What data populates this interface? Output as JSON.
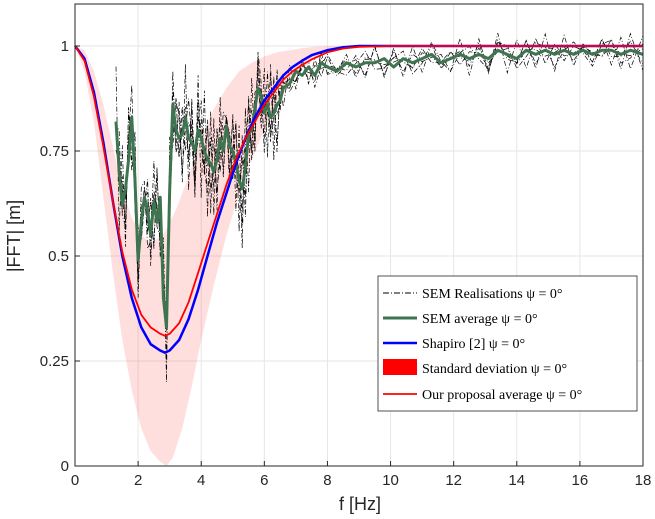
{
  "chart_data": {
    "type": "line",
    "xlabel": "f [Hz]",
    "ylabel": "|FFT| [m]",
    "xlim": [
      0,
      18
    ],
    "ylim": [
      0,
      1.1
    ],
    "xticks": [
      0,
      2,
      4,
      6,
      8,
      10,
      12,
      14,
      16,
      18
    ],
    "xtick_labels": [
      "0",
      "2",
      "4",
      "6",
      "8",
      "10",
      "12",
      "14",
      "16",
      "18"
    ],
    "yticks": [
      0,
      0.25,
      0.5,
      0.75,
      1
    ],
    "ytick_labels": [
      "0",
      "0.25",
      "0.5",
      "0.75",
      "1"
    ],
    "grid": true,
    "legend_position": "lower-right",
    "legend": [
      {
        "label": "SEM Realisations ψ = 0°",
        "style": "dashdot",
        "color": "#000000"
      },
      {
        "label": "SEM average ψ = 0°",
        "style": "line",
        "color": "#3f7450"
      },
      {
        "label": "Shapiro [2] ψ = 0°",
        "style": "line",
        "color": "#0000ff"
      },
      {
        "label": "Standard deviation ψ = 0°",
        "style": "patch",
        "color": "#ff0000"
      },
      {
        "label": "Our proposal average ψ = 0°",
        "style": "line",
        "color": "#ff0000"
      }
    ],
    "series": [
      {
        "name": "Shapiro [2] ψ = 0°",
        "color": "#0000ff",
        "x": [
          0,
          0.3,
          0.6,
          0.9,
          1.2,
          1.5,
          1.8,
          2.1,
          2.4,
          2.7,
          2.85,
          3.0,
          3.3,
          3.6,
          3.9,
          4.2,
          4.5,
          4.8,
          5.1,
          5.4,
          5.7,
          6.0,
          6.3,
          6.6,
          6.9,
          7.2,
          7.5,
          8.0,
          8.5,
          9.0,
          10,
          12,
          14,
          16,
          18
        ],
        "y": [
          1.0,
          0.97,
          0.89,
          0.77,
          0.63,
          0.5,
          0.4,
          0.33,
          0.29,
          0.275,
          0.27,
          0.275,
          0.3,
          0.35,
          0.42,
          0.5,
          0.58,
          0.65,
          0.72,
          0.78,
          0.83,
          0.87,
          0.9,
          0.93,
          0.95,
          0.965,
          0.978,
          0.99,
          0.997,
          1.0,
          1.0,
          1.0,
          1.0,
          1.0,
          1.0
        ]
      },
      {
        "name": "Our proposal average ψ = 0°",
        "color": "#ff0000",
        "x": [
          0,
          0.3,
          0.6,
          0.9,
          1.2,
          1.5,
          1.8,
          2.1,
          2.4,
          2.7,
          2.85,
          3.0,
          3.3,
          3.6,
          3.9,
          4.2,
          4.5,
          4.8,
          5.1,
          5.4,
          5.7,
          6.0,
          6.3,
          6.6,
          6.9,
          7.2,
          7.5,
          8.0,
          8.5,
          9.0,
          10,
          12,
          14,
          16,
          18
        ],
        "y": [
          1.0,
          0.965,
          0.88,
          0.76,
          0.63,
          0.51,
          0.42,
          0.36,
          0.33,
          0.315,
          0.31,
          0.315,
          0.34,
          0.39,
          0.46,
          0.53,
          0.6,
          0.67,
          0.73,
          0.78,
          0.82,
          0.86,
          0.89,
          0.92,
          0.94,
          0.955,
          0.968,
          0.985,
          0.994,
          0.998,
          1.0,
          1.0,
          1.0,
          1.0,
          1.0
        ]
      },
      {
        "name": "Standard deviation ψ = 0° (upper)",
        "color": "#ff0000",
        "x": [
          0,
          0.3,
          0.6,
          0.9,
          1.2,
          1.5,
          1.8,
          2.1,
          2.4,
          2.8,
          3.2,
          3.6,
          4.0,
          4.4,
          4.8,
          5.2,
          5.6,
          6.0,
          6.4,
          6.8,
          7.2,
          7.6,
          8.0,
          18
        ],
        "y": [
          1.0,
          0.99,
          0.94,
          0.86,
          0.76,
          0.66,
          0.59,
          0.55,
          0.53,
          0.55,
          0.61,
          0.69,
          0.78,
          0.85,
          0.9,
          0.94,
          0.96,
          0.975,
          0.985,
          0.99,
          0.995,
          0.998,
          1.0,
          1.0
        ]
      },
      {
        "name": "Standard deviation ψ = 0° (lower)",
        "color": "#ff0000",
        "x": [
          0,
          0.3,
          0.6,
          0.9,
          1.2,
          1.5,
          1.8,
          2.1,
          2.4,
          2.7,
          2.9,
          3.1,
          3.4,
          3.7,
          4.0,
          4.4,
          4.8,
          5.2,
          5.6,
          6.0,
          6.4,
          6.8,
          7.2,
          7.6,
          8.0,
          8.5,
          9.0,
          18
        ],
        "y": [
          1.0,
          0.94,
          0.82,
          0.64,
          0.46,
          0.3,
          0.18,
          0.09,
          0.035,
          0.01,
          0.0,
          0.02,
          0.09,
          0.19,
          0.3,
          0.43,
          0.55,
          0.65,
          0.73,
          0.8,
          0.86,
          0.91,
          0.945,
          0.97,
          0.985,
          0.995,
          1.0,
          1.0
        ]
      },
      {
        "name": "SEM average ψ = 0°",
        "color": "#3f7450",
        "x": [
          1.3,
          1.4,
          1.5,
          1.6,
          1.7,
          1.8,
          1.9,
          2.0,
          2.1,
          2.2,
          2.3,
          2.4,
          2.5,
          2.6,
          2.7,
          2.8,
          2.9,
          3.0,
          3.1,
          3.2,
          3.3,
          3.4,
          3.5,
          3.6,
          3.7,
          3.8,
          3.9,
          4.0,
          4.1,
          4.2,
          4.3,
          4.4,
          4.5,
          4.6,
          4.7,
          4.8,
          4.9,
          5.0,
          5.1,
          5.2,
          5.3,
          5.4,
          5.5,
          5.6,
          5.7,
          5.8,
          5.9,
          6.0,
          6.1,
          6.2,
          6.3,
          6.4,
          6.5,
          6.6,
          6.8,
          7.0,
          7.2,
          7.4,
          7.6,
          7.8,
          8.0,
          8.3,
          8.6,
          8.9,
          9.2,
          9.5,
          9.8,
          10.1,
          10.4,
          10.7,
          11.0,
          11.3,
          11.6,
          11.9,
          12.2,
          12.5,
          12.8,
          13.1,
          13.4,
          13.7,
          14.0,
          14.3,
          14.6,
          14.9,
          15.2,
          15.5,
          15.8,
          16.1,
          16.4,
          16.7,
          17.0,
          17.3,
          17.6,
          18.0
        ],
        "y": [
          0.82,
          0.7,
          0.62,
          0.66,
          0.73,
          0.83,
          0.68,
          0.49,
          0.58,
          0.64,
          0.61,
          0.55,
          0.63,
          0.58,
          0.64,
          0.4,
          0.33,
          0.66,
          0.86,
          0.8,
          0.78,
          0.79,
          0.83,
          0.78,
          0.77,
          0.75,
          0.8,
          0.78,
          0.75,
          0.73,
          0.72,
          0.7,
          0.73,
          0.78,
          0.75,
          0.81,
          0.76,
          0.75,
          0.72,
          0.68,
          0.66,
          0.71,
          0.79,
          0.8,
          0.85,
          0.9,
          0.88,
          0.84,
          0.86,
          0.83,
          0.84,
          0.86,
          0.87,
          0.9,
          0.91,
          0.94,
          0.93,
          0.95,
          0.93,
          0.96,
          0.95,
          0.94,
          0.96,
          0.95,
          0.96,
          0.96,
          0.97,
          0.95,
          0.97,
          0.96,
          0.97,
          0.98,
          0.96,
          0.97,
          0.98,
          0.97,
          0.98,
          0.97,
          0.99,
          0.98,
          0.97,
          0.99,
          0.98,
          0.99,
          0.98,
          0.99,
          0.98,
          0.99,
          0.98,
          0.99,
          0.99,
          0.98,
          0.99,
          0.98
        ]
      }
    ]
  }
}
